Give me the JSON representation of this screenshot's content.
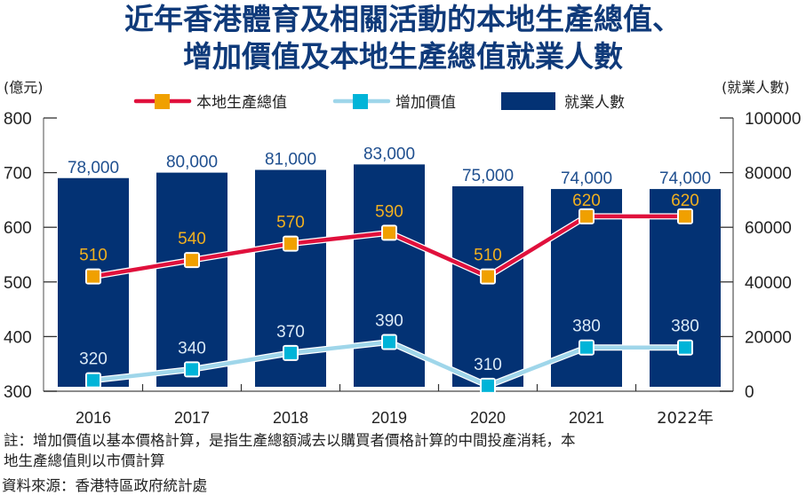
{
  "title_line1": "近年香港體育及相關活動的本地生產總值、",
  "title_line2": "增加價值及本地生產總值就業人數",
  "colors": {
    "title": "#0f3a7a",
    "bar": "#033274",
    "gdp_line": "#e0103c",
    "gdp_marker": "#f0a000",
    "gdp_label": "#f0b020",
    "va_line": "#9fd6ea",
    "va_marker": "#00b4d8",
    "va_label": "#dbeaf6",
    "bar_label": "#1f4f8f",
    "axis": "#555555"
  },
  "chart_data": {
    "type": "bar",
    "title": "近年香港體育及相關活動的本地生產總值、增加價值及本地生產總值就業人數",
    "categories": [
      "2016",
      "2017",
      "2018",
      "2019",
      "2020",
      "2021",
      "2022年"
    ],
    "left_axis": {
      "label": "(億元)",
      "ylim": [
        300,
        800
      ],
      "ticks": [
        300,
        400,
        500,
        600,
        700,
        800
      ]
    },
    "right_axis": {
      "label": "(就業人數)",
      "ylim": [
        0,
        100000
      ],
      "ticks": [
        0,
        20000,
        40000,
        60000,
        80000,
        100000
      ]
    },
    "legend": {
      "placement": "top-center"
    },
    "series": [
      {
        "name": "本地生產總值",
        "type": "line",
        "axis": "left",
        "values": [
          510,
          540,
          570,
          590,
          510,
          620,
          620
        ],
        "labels": [
          "510",
          "540",
          "570",
          "590",
          "510",
          "620",
          "620"
        ]
      },
      {
        "name": "增加價值",
        "type": "line",
        "axis": "left",
        "values": [
          320,
          340,
          370,
          390,
          310,
          380,
          380
        ],
        "labels": [
          "320",
          "340",
          "370",
          "390",
          "310",
          "380",
          "380"
        ]
      },
      {
        "name": "就業人數",
        "type": "bar",
        "axis": "right",
        "values": [
          78000,
          80000,
          81000,
          83000,
          75000,
          74000,
          74000
        ],
        "labels": [
          "78,000",
          "80,000",
          "81,000",
          "83,000",
          "75,000",
          "74,000",
          "74,000"
        ]
      }
    ]
  },
  "notes": {
    "line1": "註：增加價值以基本價格計算，是指生產總額減去以購買者價格計算的中間投產消耗，本",
    "line2": "地生產總值則以市價計算",
    "source": "資料來源：香港特區政府統計處"
  }
}
